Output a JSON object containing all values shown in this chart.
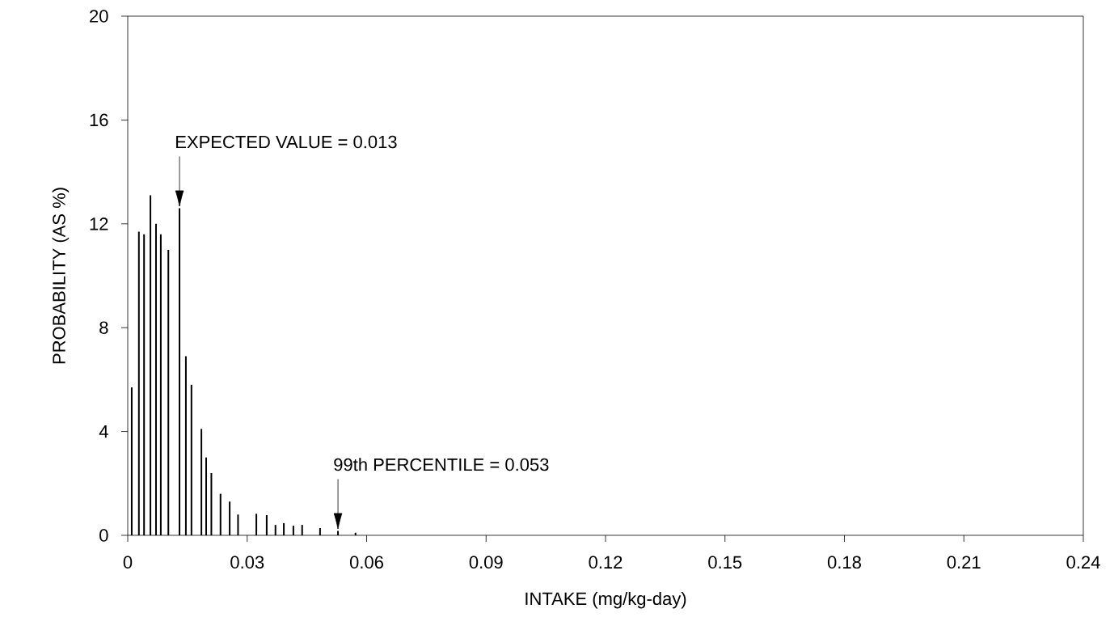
{
  "chart_data": {
    "type": "bar",
    "xlabel": "INTAKE (mg/kg-day)",
    "ylabel": "PROBABILITY (AS %)",
    "x": [
      0.001,
      0.0028,
      0.0041,
      0.0057,
      0.0071,
      0.0083,
      0.0102,
      0.013,
      0.0146,
      0.016,
      0.0185,
      0.0197,
      0.021,
      0.0233,
      0.0256,
      0.0277,
      0.0323,
      0.0349,
      0.0371,
      0.0392,
      0.0416,
      0.0438,
      0.0483,
      0.0528,
      0.0572
    ],
    "values": [
      5.7,
      11.7,
      11.6,
      13.1,
      12.0,
      11.6,
      11.0,
      12.6,
      6.9,
      5.8,
      4.1,
      3.0,
      2.4,
      1.6,
      1.3,
      0.8,
      0.83,
      0.78,
      0.4,
      0.47,
      0.37,
      0.4,
      0.28,
      0.17,
      0.1
    ],
    "color": "#000000",
    "xlim": [
      0,
      0.24
    ],
    "xticks": [
      0,
      0.03,
      0.06,
      0.09,
      0.12,
      0.15,
      0.18,
      0.21,
      0.24
    ],
    "ylim": [
      0,
      20
    ],
    "yticks": [
      0,
      4,
      8,
      12,
      16,
      20
    ],
    "grid": false,
    "annotations": [
      "EXPECTED VALUE = 0.013",
      "99th PERCENTILE = 0.053"
    ]
  }
}
